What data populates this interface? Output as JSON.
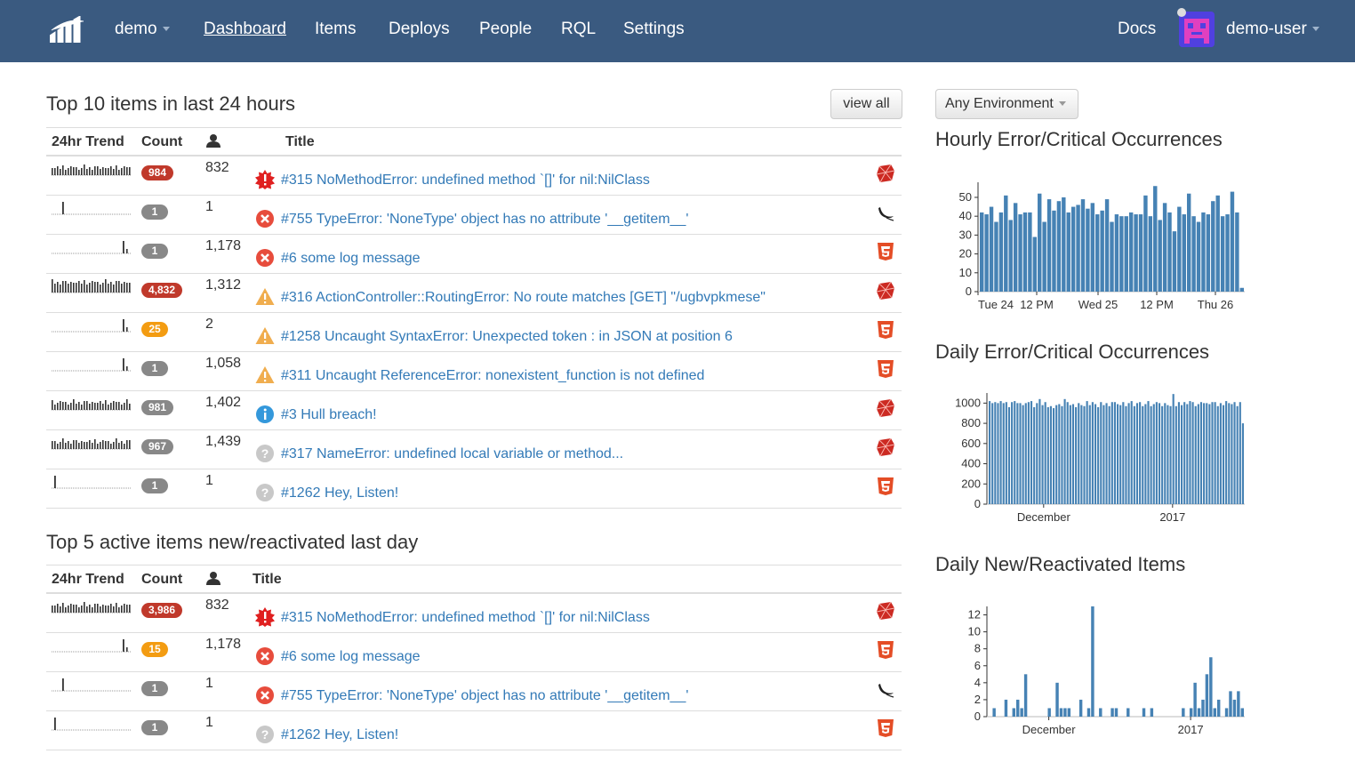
{
  "nav": {
    "project": "demo",
    "items": [
      "Dashboard",
      "Items",
      "Deploys",
      "People",
      "RQL",
      "Settings"
    ],
    "active": "Dashboard",
    "docs": "Docs",
    "user": "demo-user"
  },
  "top_items": {
    "title": "Top 10 items in last 24 hours",
    "view_all": "view all",
    "headers": {
      "trend": "24hr Trend",
      "count": "Count",
      "title": "Title"
    },
    "rows": [
      {
        "count": "984",
        "badge": "red",
        "users": "832",
        "level": "critical",
        "title": "#315 NoMethodError: undefined method `[]' for nil:NilClass",
        "platform": "ruby",
        "trend": "busy"
      },
      {
        "count": "1",
        "badge": "gray",
        "users": "1",
        "level": "error",
        "title": "#755 TypeError: 'NoneType' object has no attribute '__getitem__'",
        "platform": "flask",
        "trend": "early"
      },
      {
        "count": "1",
        "badge": "gray",
        "users": "1,178",
        "level": "error",
        "title": "#6 some log message",
        "platform": "html5",
        "trend": "late"
      },
      {
        "count": "4,832",
        "badge": "red",
        "users": "1,312",
        "level": "warning",
        "title": "#316 ActionController::RoutingError: No route matches [GET] \"/ugbvpkmese\"",
        "platform": "ruby",
        "trend": "full"
      },
      {
        "count": "25",
        "badge": "orange",
        "users": "2",
        "level": "warning",
        "title": "#1258 Uncaught SyntaxError: Unexpected token : in JSON at position 6",
        "platform": "html5",
        "trend": "late"
      },
      {
        "count": "1",
        "badge": "gray",
        "users": "1,058",
        "level": "warning",
        "title": "#311 Uncaught ReferenceError: nonexistent_function is not defined",
        "platform": "html5",
        "trend": "late"
      },
      {
        "count": "981",
        "badge": "gray",
        "users": "1,402",
        "level": "info",
        "title": "#3 Hull breach!",
        "platform": "ruby",
        "trend": "busy"
      },
      {
        "count": "967",
        "badge": "gray",
        "users": "1,439",
        "level": "unknown",
        "title": "#317 NameError: undefined local variable or method...",
        "platform": "ruby",
        "trend": "busy"
      },
      {
        "count": "1",
        "badge": "gray",
        "users": "1",
        "level": "unknown",
        "title": "#1262 Hey, Listen!",
        "platform": "html5",
        "trend": "first"
      }
    ]
  },
  "active_items": {
    "title": "Top 5 active items new/reactivated last day",
    "headers": {
      "trend": "24hr Trend",
      "count": "Count",
      "title": "Title"
    },
    "rows": [
      {
        "count": "3,986",
        "badge": "red",
        "users": "832",
        "level": "critical",
        "title": "#315 NoMethodError: undefined method `[]' for nil:NilClass",
        "platform": "ruby",
        "trend": "busy"
      },
      {
        "count": "15",
        "badge": "orange",
        "users": "1,178",
        "level": "error",
        "title": "#6 some log message",
        "platform": "html5",
        "trend": "late"
      },
      {
        "count": "1",
        "badge": "gray",
        "users": "1",
        "level": "error",
        "title": "#755 TypeError: 'NoneType' object has no attribute '__getitem__'",
        "platform": "flask",
        "trend": "early"
      },
      {
        "count": "1",
        "badge": "gray",
        "users": "1",
        "level": "unknown",
        "title": "#1262 Hey, Listen!",
        "platform": "html5",
        "trend": "first"
      }
    ]
  },
  "environment_select": "Any Environment",
  "colors": {
    "navbar": "#3a5a80",
    "bar": "#4682b4",
    "critical": "#e02020",
    "error": "#e74c3c",
    "warning": "#f0ad4e",
    "info": "#3498db",
    "unknown": "#c8c8c8",
    "link": "#337ab7"
  },
  "chart_data": [
    {
      "type": "bar",
      "title": "Hourly Error/Critical Occurrences",
      "ylim": [
        0,
        58
      ],
      "yticks": [
        0,
        10,
        20,
        30,
        40,
        50
      ],
      "xtick_labels": [
        "Tue 24",
        "12 PM",
        "Wed 25",
        "12 PM",
        "Thu 26"
      ],
      "values": [
        42,
        41,
        45,
        37,
        42,
        51,
        38,
        47,
        41,
        42,
        42,
        29,
        52,
        37,
        49,
        43,
        48,
        50,
        42,
        45,
        46,
        49,
        44,
        47,
        41,
        43,
        49,
        37,
        41,
        40,
        40,
        42,
        41,
        41,
        51,
        40,
        56,
        38,
        47,
        42,
        32,
        45,
        41,
        52,
        40,
        37,
        42,
        41,
        48,
        51,
        40,
        41,
        53,
        42,
        2
      ]
    },
    {
      "type": "bar",
      "title": "Daily Error/Critical Occurrences",
      "ylim": [
        0,
        1100
      ],
      "yticks": [
        0,
        200,
        400,
        600,
        800,
        1000
      ],
      "xtick_labels": [
        "December",
        "2017"
      ],
      "values": [
        1020,
        1000,
        1010,
        1000,
        1020,
        1000,
        1010,
        960,
        1010,
        1020,
        1000,
        1000,
        980,
        1000,
        1010,
        1020,
        960,
        1000,
        1040,
        980,
        1010,
        960,
        970,
        950,
        980,
        990,
        970,
        1040,
        1010,
        980,
        990,
        960,
        1000,
        980,
        970,
        1020,
        980,
        1010,
        990,
        960,
        1010,
        980,
        1000,
        970,
        1010,
        1010,
        990,
        980,
        1010,
        970,
        1000,
        1020,
        970,
        1000,
        1010,
        970,
        990,
        1020,
        970,
        990,
        1010,
        1000,
        970,
        1000,
        980,
        970,
        1090,
        970,
        1010,
        980,
        1010,
        990,
        1020,
        1010,
        970,
        990,
        1010,
        1000,
        1000,
        990,
        1010,
        1010,
        970,
        1000,
        980,
        1020,
        1000,
        990,
        1010,
        970,
        1010,
        800
      ]
    },
    {
      "type": "bar",
      "title": "Daily New/Reactivated Items",
      "ylim": [
        0,
        13
      ],
      "yticks": [
        0,
        2,
        4,
        6,
        8,
        10,
        12
      ],
      "xtick_labels": [
        "December",
        "2017"
      ],
      "values": [
        0,
        1,
        0,
        0,
        2,
        0,
        1,
        2,
        1,
        5,
        0,
        0,
        0,
        0,
        0,
        1,
        0,
        4,
        1,
        1,
        1,
        0,
        0,
        2,
        0,
        1,
        13,
        0,
        1,
        0,
        0,
        1,
        1,
        0,
        0,
        1,
        0,
        0,
        0,
        1,
        0,
        1,
        0,
        0,
        0,
        0,
        0,
        0,
        0,
        1,
        0,
        1,
        4,
        1,
        2,
        5,
        7,
        1,
        2,
        0,
        1,
        3,
        2,
        3,
        1
      ]
    }
  ]
}
